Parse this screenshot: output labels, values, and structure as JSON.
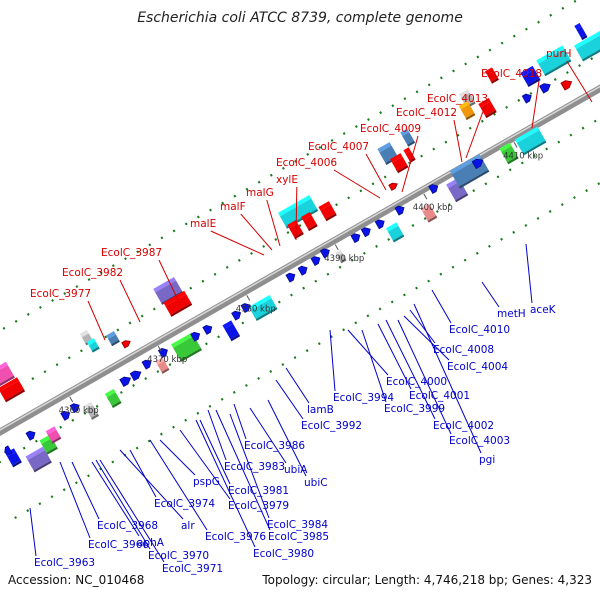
{
  "title": "Escherichia coli ATCC 8739, complete genome",
  "footer": {
    "accession": "Accession: NC_010468",
    "summary": "Topology: circular; Length: 4,746,218 bp; Genes: 4,323"
  },
  "ticks": [
    "4360 kbp",
    "4370 kbp",
    "4380 kbp",
    "4390 kbp",
    "4400 kbp",
    "4410 kbp"
  ],
  "upper_labels": [
    "EcolC_3977",
    "EcolC_3982",
    "EcolC_3987",
    "malE",
    "malF",
    "malG",
    "xylE",
    "EcolC_4006",
    "EcolC_4007",
    "EcolC_4009",
    "EcolC_4012",
    "EcolC_4013",
    "EcolC_4018",
    "purH"
  ],
  "lower_labels": [
    "EcolC_3963",
    "EcolC_3966",
    "EcolC_3968",
    "aphA",
    "EcolC_3970",
    "EcolC_3971",
    "alr",
    "EcolC_3974",
    "EcolC_3976",
    "pspG",
    "EcolC_3979",
    "EcolC_3980",
    "EcolC_3981",
    "EcolC_3983",
    "EcolC_3984",
    "EcolC_3985",
    "ubiA",
    "EcolC_3986",
    "ubiC",
    "lamB",
    "EcolC_3992",
    "EcolC_3994",
    "EcolC_4000",
    "EcolC_3999",
    "EcolC_4001",
    "EcolC_4002",
    "EcolC_4003",
    "EcolC_4004",
    "EcolC_4008",
    "pgi",
    "EcolC_4010",
    "metH",
    "aceK"
  ],
  "colors": {
    "backbone": "#9a9a9a",
    "upper_label": "#d40000",
    "lower_label": "#0000c8",
    "tick_dash": "#1a7a1a",
    "red_feature": "#f00000",
    "blue_feature": "#0a14e6",
    "cyan_feature": "#19d2dc",
    "purple_feature": "#7a68c6",
    "pink_feature": "#ef4fae",
    "green_feature": "#38c838",
    "gray_feature": "#b4b4b4",
    "steel_feature": "#4a7fb5"
  }
}
